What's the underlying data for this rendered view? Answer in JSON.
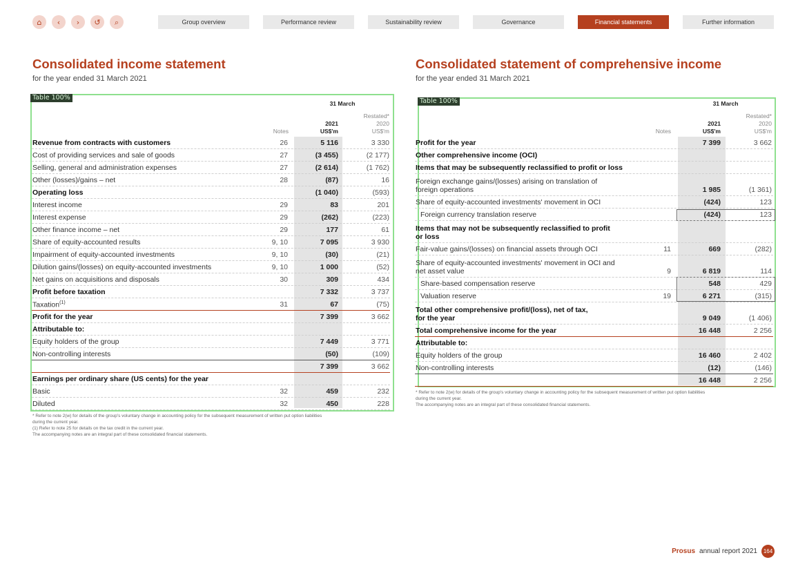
{
  "nav": {
    "icons": [
      "home-icon",
      "back-icon",
      "forward-icon",
      "undo-icon",
      "search-icon"
    ],
    "glyphs": [
      "⌂",
      "‹",
      "›",
      "↺",
      "⌕"
    ],
    "tabs": [
      "Group overview",
      "Performance review",
      "Sustainability review",
      "Governance",
      "Financial statements",
      "Further information"
    ],
    "active_tab": "Financial statements"
  },
  "left": {
    "title": "Consolidated income statement",
    "subtitle": "for the year ended 31 March 2021",
    "table_label": "Table 100%",
    "header": {
      "period": "31 March",
      "restated": "Restated*",
      "year_cur": "2021",
      "year_prev": "2020",
      "notes": "Notes",
      "unit_cur": "US$'m",
      "unit_prev": "US$'m"
    },
    "rows": [
      {
        "label": "Revenue from contracts with customers",
        "note": "26",
        "cur": "5 116",
        "prev": "3 330",
        "style": "bold"
      },
      {
        "label": "Cost of providing services and sale of goods",
        "note": "27",
        "cur": "(3 455)",
        "prev": "(2 177)"
      },
      {
        "label": "Selling, general and administration expenses",
        "note": "27",
        "cur": "(2 614)",
        "prev": "(1 762)"
      },
      {
        "label": "Other (losses)/gains – net",
        "note": "28",
        "cur": "(87)",
        "prev": "16"
      },
      {
        "label": "Operating loss",
        "note": "",
        "cur": "(1 040)",
        "prev": "(593)",
        "style": "bold"
      },
      {
        "label": "Interest income",
        "note": "29",
        "cur": "83",
        "prev": "201"
      },
      {
        "label": "Interest expense",
        "note": "29",
        "cur": "(262)",
        "prev": "(223)"
      },
      {
        "label": "Other finance income – net",
        "note": "29",
        "cur": "177",
        "prev": "61"
      },
      {
        "label": "Share of equity-accounted results",
        "note": "9, 10",
        "cur": "7 095",
        "prev": "3 930"
      },
      {
        "label": "Impairment of equity-accounted investments",
        "note": "9, 10",
        "cur": "(30)",
        "prev": "(21)"
      },
      {
        "label": "Dilution gains/(losses) on equity-accounted investments",
        "note": "9, 10",
        "cur": "1 000",
        "prev": "(52)"
      },
      {
        "label": "Net gains on acquisitions and disposals",
        "note": "30",
        "cur": "309",
        "prev": "434"
      },
      {
        "label": "Profit before taxation",
        "note": "",
        "cur": "7 332",
        "prev": "3 737",
        "style": "bold"
      },
      {
        "label": "Taxation",
        "sup": "(1)",
        "note": "31",
        "cur": "67",
        "prev": "(75)",
        "style": "total"
      },
      {
        "label": "Profit for the year",
        "note": "",
        "cur": "7 399",
        "prev": "3 662",
        "style": "bold"
      },
      {
        "label": "Attributable to:",
        "note": "",
        "cur": "",
        "prev": "",
        "style": "bold"
      },
      {
        "label": "Equity holders of the group",
        "note": "",
        "cur": "7 449",
        "prev": "3 771"
      },
      {
        "label": "Non-controlling interests",
        "note": "",
        "cur": "(50)",
        "prev": "(109)",
        "style": "sep"
      },
      {
        "label": "",
        "note": "",
        "cur": "7 399",
        "prev": "3 662",
        "style": "total"
      },
      {
        "label": "Earnings per ordinary share (US cents) for the year",
        "note": "",
        "cur": "",
        "prev": "",
        "style": "bold"
      },
      {
        "label": "Basic",
        "note": "32",
        "cur": "459",
        "prev": "232"
      },
      {
        "label": "Diluted",
        "note": "32",
        "cur": "450",
        "prev": "228"
      }
    ],
    "footnotes": [
      "*   Refer to note 2(w) for details of the group's voluntary change in accounting policy for the subsequent measurement of written put option liabilities",
      "    during the current year.",
      "(1) Refer to note 25 for details on the tax credit in the current year.",
      "The accompanying notes are an integral part of these consolidated financial statements."
    ]
  },
  "right": {
    "title": "Consolidated statement of comprehensive income",
    "subtitle": "for the year ended 31 March 2021",
    "table_label": "Table 100%",
    "header": {
      "period": "31 March",
      "restated": "Restated*",
      "year_cur": "2021",
      "year_prev": "2020",
      "notes": "Notes",
      "unit_cur": "US$'m",
      "unit_prev": "US$'m"
    },
    "rows": [
      {
        "label": "Profit for the year",
        "note": "",
        "cur": "7 399",
        "prev": "3 662",
        "style": "bold"
      },
      {
        "label": "Other comprehensive income (OCI)",
        "note": "",
        "cur": "",
        "prev": "",
        "style": "bold"
      },
      {
        "label": "Items that may be subsequently reclassified to profit or loss",
        "note": "",
        "cur": "",
        "prev": "",
        "style": "bold"
      },
      {
        "label": "Foreign exchange gains/(losses) arising on translation of",
        "label2": "foreign operations",
        "note": "",
        "cur": "1 985",
        "prev": "(1 361)",
        "style": "tall"
      },
      {
        "label": "Share of equity-accounted investments' movement in OCI",
        "note": "",
        "cur": "(424)",
        "prev": "123"
      },
      {
        "label": "Foreign currency translation reserve",
        "note": "",
        "cur": "(424)",
        "prev": "123",
        "style": "indent"
      },
      {
        "label": "Items that may not be subsequently reclassified to profit",
        "label2": "or loss",
        "note": "",
        "cur": "",
        "prev": "",
        "style": "bold tall"
      },
      {
        "label": "Fair-value gains/(losses) on financial assets through OCI",
        "note": "11",
        "cur": "669",
        "prev": "(282)"
      },
      {
        "label": "Share of equity-accounted investments' movement in OCI and",
        "label2": "net asset value",
        "note": "9",
        "cur": "6 819",
        "prev": "114",
        "style": "tall"
      },
      {
        "label": "Share-based compensation reserve",
        "note": "",
        "cur": "548",
        "prev": "429",
        "style": "indent"
      },
      {
        "label": "Valuation reserve",
        "note": "19",
        "cur": "6 271",
        "prev": "(315)",
        "style": "indent"
      },
      {
        "label": "Total other comprehensive profit/(loss), net of tax,",
        "label2": "for the year",
        "note": "",
        "cur": "9 049",
        "prev": "(1 406)",
        "style": "bold tall"
      },
      {
        "label": "Total comprehensive income for the year",
        "note": "",
        "cur": "16 448",
        "prev": "2 256",
        "style": "bold total"
      },
      {
        "label": "Attributable to:",
        "note": "",
        "cur": "",
        "prev": "",
        "style": "bold"
      },
      {
        "label": "Equity holders of the group",
        "note": "",
        "cur": "16 460",
        "prev": "2 402"
      },
      {
        "label": "Non-controlling interests",
        "note": "",
        "cur": "(12)",
        "prev": "(146)",
        "style": "sep"
      },
      {
        "label": "",
        "note": "",
        "cur": "16 448",
        "prev": "2 256",
        "style": "total"
      }
    ],
    "footnotes": [
      "*   Refer to note 2(w) for details of the group's voluntary change in accounting policy for the subsequent measurement of written put option liabilities",
      "    during the current year.",
      "The accompanying notes are an integral part of these consolidated financial statements."
    ]
  },
  "footer": {
    "brand": "Prosus",
    "report": "annual report 2021",
    "page": "164"
  }
}
